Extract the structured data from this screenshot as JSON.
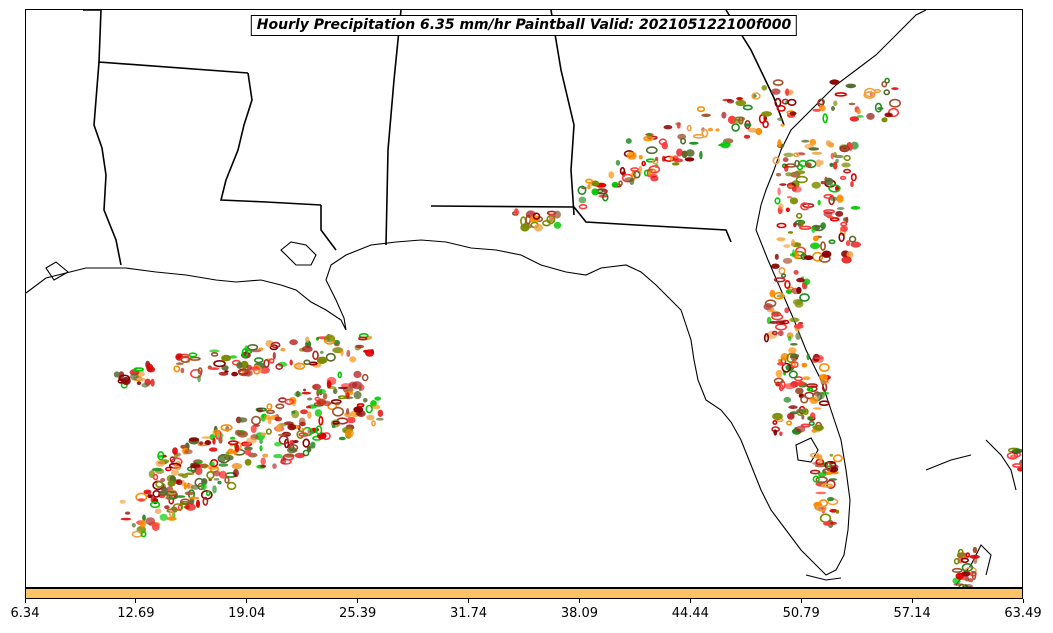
{
  "title": "Hourly Precipitation 6.35 mm/hr Paintball Valid: 202105122100f000",
  "colors": {
    "colorbar_fill": "#ffc266",
    "coastline": "#000000",
    "member_colors": [
      "#8b0000",
      "#e00000",
      "#ff3b3b",
      "#ff8c00",
      "#f0a040",
      "#00c800",
      "#228b22",
      "#7b8b00",
      "#556b2f",
      "#b22222",
      "#a0522d"
    ]
  },
  "colorbar": {
    "tick_labels": [
      "6.34",
      "12.69",
      "19.04",
      "25.39",
      "31.74",
      "38.09",
      "44.44",
      "50.79",
      "57.14",
      "63.49"
    ]
  },
  "map": {
    "region": "US Gulf Coast and Florida",
    "features": [
      "state-borders",
      "coastlines",
      "precipitation-paintball-blobs"
    ]
  }
}
